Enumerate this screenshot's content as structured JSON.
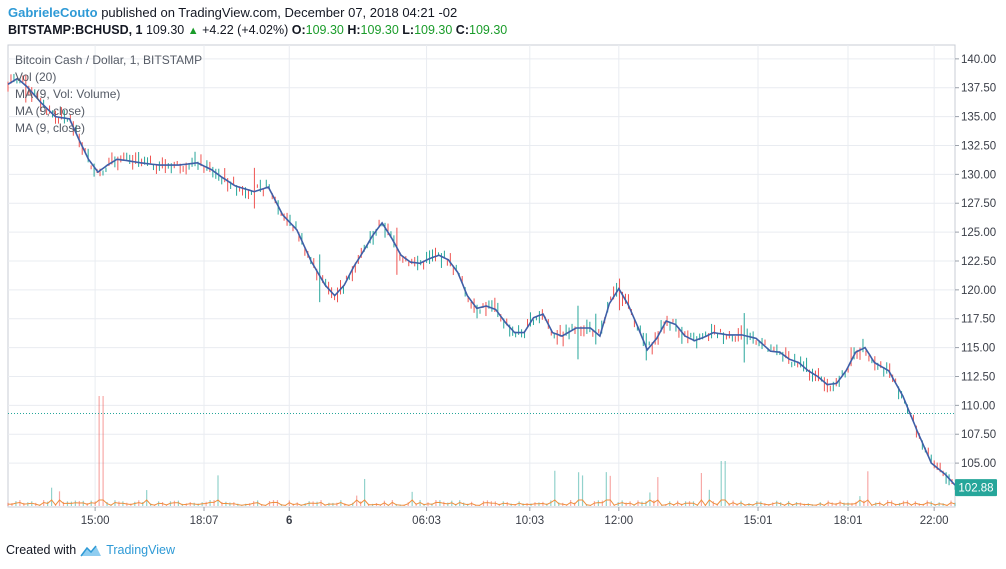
{
  "header": {
    "author": "GabrieleCouto",
    "published_text": "published on TradingView.com, December 07, 2018 04:21 -02",
    "symbol": "BITSTAMP:BCHUSD, 1",
    "last": "109.30",
    "change_arrow": "▲",
    "change": "+4.22 (+4.02%)",
    "o_label": "O:",
    "o_value": "109.30",
    "h_label": "H:",
    "h_value": "109.30",
    "l_label": "L:",
    "l_value": "109.30",
    "c_label": "C:",
    "c_value": "109.30"
  },
  "legend": {
    "title": "Bitcoin Cash / Dollar, 1, BITSTAMP",
    "vol": "Vol (20)",
    "ma_vol": "MA (9, Vol: Volume)",
    "ma_close_1": "MA (9, close)",
    "ma_close_2": "MA (9, close)"
  },
  "footer": {
    "created_with": "Created with",
    "brand": "TradingView"
  },
  "colors": {
    "price_line": "#3f5fa8",
    "up": "#26a69a",
    "down": "#ef5350",
    "ref_line": "#26a69a",
    "last_label_bg": "#26a69a",
    "vol_ma": "#ef8f3e",
    "grid": "#e9ecf1"
  },
  "chart_data": {
    "type": "line",
    "y_ticks": [
      "140.00",
      "137.50",
      "135.00",
      "132.50",
      "130.00",
      "127.50",
      "125.00",
      "122.50",
      "120.00",
      "117.50",
      "115.00",
      "112.50",
      "110.00",
      "107.50",
      "105.00"
    ],
    "ylim": [
      101.2,
      141.2
    ],
    "x_tick_labels": [
      "15:00",
      "18:07",
      "6",
      "06:03",
      "10:03",
      "12:00",
      "15:01",
      "18:01",
      "22:00"
    ],
    "x_tick_positions": [
      0.092,
      0.207,
      0.297,
      0.442,
      0.551,
      0.645,
      0.792,
      0.887,
      0.978
    ],
    "last_price_label": "102.88",
    "last_price": 102.88,
    "reference_price": 109.3,
    "series": [
      {
        "x": [
          0.0,
          0.01,
          0.02,
          0.035,
          0.05,
          0.065,
          0.075,
          0.085,
          0.095,
          0.105,
          0.115,
          0.125,
          0.14,
          0.16,
          0.18,
          0.2,
          0.215,
          0.225,
          0.24,
          0.26,
          0.275,
          0.29,
          0.305,
          0.32,
          0.335,
          0.345,
          0.355,
          0.365,
          0.375,
          0.385,
          0.395,
          0.405,
          0.415,
          0.425,
          0.435,
          0.445,
          0.455,
          0.465,
          0.475,
          0.485,
          0.495,
          0.505,
          0.515,
          0.525,
          0.535,
          0.545,
          0.555,
          0.565,
          0.575,
          0.585,
          0.6,
          0.615,
          0.625,
          0.635,
          0.645,
          0.655,
          0.665,
          0.675,
          0.685,
          0.695,
          0.705,
          0.715,
          0.725,
          0.735,
          0.745,
          0.76,
          0.775,
          0.79,
          0.805,
          0.815,
          0.825,
          0.835,
          0.845,
          0.855,
          0.865,
          0.875,
          0.885,
          0.895,
          0.905,
          0.915,
          0.93,
          0.945,
          0.96,
          0.975,
          0.99,
          1.0
        ],
        "y": [
          137.8,
          138.3,
          137.6,
          136.2,
          135.0,
          134.8,
          133.0,
          131.3,
          130.2,
          130.8,
          131.3,
          131.2,
          131.0,
          130.8,
          130.8,
          131.0,
          130.4,
          129.8,
          129.0,
          128.5,
          128.9,
          126.5,
          125.2,
          122.5,
          120.4,
          119.5,
          120.4,
          122.0,
          123.3,
          124.7,
          125.8,
          124.5,
          123.0,
          122.4,
          122.3,
          122.7,
          123.0,
          122.6,
          121.5,
          119.5,
          118.4,
          118.6,
          118.3,
          117.2,
          116.3,
          116.3,
          117.6,
          117.9,
          116.3,
          116.0,
          116.7,
          116.7,
          116.0,
          118.8,
          120.1,
          118.7,
          116.8,
          114.8,
          115.8,
          117.3,
          117.0,
          116.0,
          115.6,
          115.9,
          116.3,
          116.1,
          116.1,
          115.8,
          114.7,
          114.6,
          114.0,
          113.7,
          113.0,
          112.5,
          111.8,
          111.9,
          113.0,
          114.6,
          115.0,
          113.7,
          113.0,
          110.8,
          107.8,
          105.0,
          104.0,
          103.1
        ]
      }
    ]
  }
}
